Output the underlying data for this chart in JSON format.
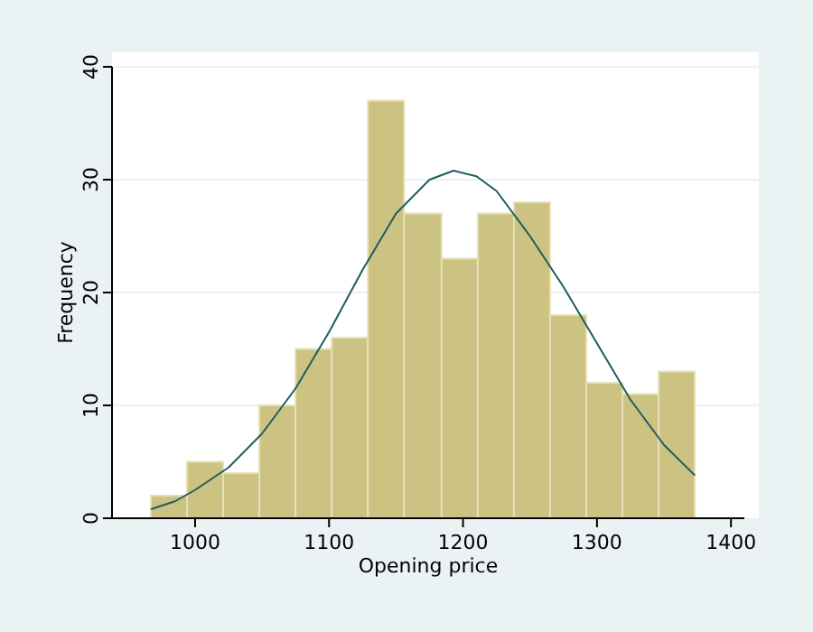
{
  "chart_data": {
    "type": "histogram",
    "xlabel": "Opening price",
    "ylabel": "Frequency",
    "bins": [
      967,
      994,
      1021,
      1048,
      1075,
      1102,
      1129,
      1156,
      1184,
      1211,
      1238,
      1265,
      1292,
      1319,
      1346,
      1373
    ],
    "values": [
      2,
      5,
      4,
      10,
      15,
      16,
      37,
      27,
      23,
      27,
      28,
      18,
      12,
      11,
      13
    ],
    "color": "#ccc383",
    "series": [
      {
        "type": "line",
        "color": "#1f5c5e",
        "x": [
          967,
          985,
          1000,
          1025,
          1050,
          1075,
          1100,
          1125,
          1150,
          1175,
          1193,
          1210,
          1225,
          1250,
          1275,
          1300,
          1325,
          1350,
          1373
        ],
        "values": [
          0.8,
          1.5,
          2.5,
          4.5,
          7.5,
          11.5,
          16.5,
          22,
          27,
          30,
          30.8,
          30.3,
          29,
          25,
          20.5,
          15.5,
          10.5,
          6.5,
          3.8
        ]
      }
    ],
    "xlim": [
      938,
      1410
    ],
    "xticks": [
      1000,
      1100,
      1200,
      1300,
      1400
    ],
    "ylim": [
      0,
      40
    ],
    "yticks": [
      0,
      10,
      20,
      30,
      40
    ],
    "grid": "y"
  }
}
